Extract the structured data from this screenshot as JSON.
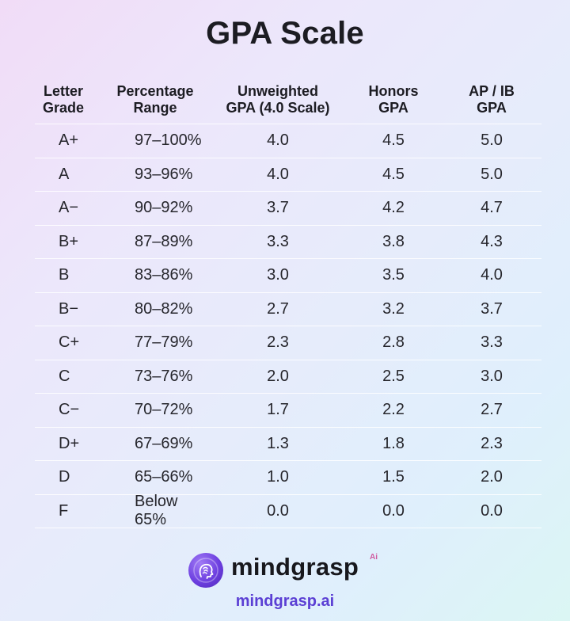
{
  "title": "GPA Scale",
  "headers": {
    "letter": "Letter\nGrade",
    "percentage": "Percentage\nRange",
    "unweighted": "Unweighted\nGPA (4.0 Scale)",
    "honors": "Honors\nGPA",
    "apib": "AP / IB\nGPA"
  },
  "rows": [
    {
      "letter": "A+",
      "range": "97–100%",
      "unweighted": "4.0",
      "honors": "4.5",
      "apib": "5.0"
    },
    {
      "letter": "A",
      "range": "93–96%",
      "unweighted": "4.0",
      "honors": "4.5",
      "apib": "5.0"
    },
    {
      "letter": "A−",
      "range": "90–92%",
      "unweighted": "3.7",
      "honors": "4.2",
      "apib": "4.7"
    },
    {
      "letter": "B+",
      "range": "87–89%",
      "unweighted": "3.3",
      "honors": "3.8",
      "apib": "4.3"
    },
    {
      "letter": "B",
      "range": "83–86%",
      "unweighted": "3.0",
      "honors": "3.5",
      "apib": "4.0"
    },
    {
      "letter": "B−",
      "range": "80–82%",
      "unweighted": "2.7",
      "honors": "3.2",
      "apib": "3.7"
    },
    {
      "letter": "C+",
      "range": "77–79%",
      "unweighted": "2.3",
      "honors": "2.8",
      "apib": "3.3"
    },
    {
      "letter": "C",
      "range": "73–76%",
      "unweighted": "2.0",
      "honors": "2.5",
      "apib": "3.0"
    },
    {
      "letter": "C−",
      "range": "70–72%",
      "unweighted": "1.7",
      "honors": "2.2",
      "apib": "2.7"
    },
    {
      "letter": "D+",
      "range": "67–69%",
      "unweighted": "1.3",
      "honors": "1.8",
      "apib": "2.3"
    },
    {
      "letter": "D",
      "range": "65–66%",
      "unweighted": "1.0",
      "honors": "1.5",
      "apib": "2.0"
    },
    {
      "letter": "F",
      "range": "Below 65%",
      "unweighted": "0.0",
      "honors": "0.0",
      "apib": "0.0"
    }
  ],
  "brand": {
    "name": "mindgrasp",
    "superscript": "Ai",
    "url": "mindgrasp.ai",
    "icon": "brain-head-icon",
    "accent_color": "#5b3fd4"
  }
}
